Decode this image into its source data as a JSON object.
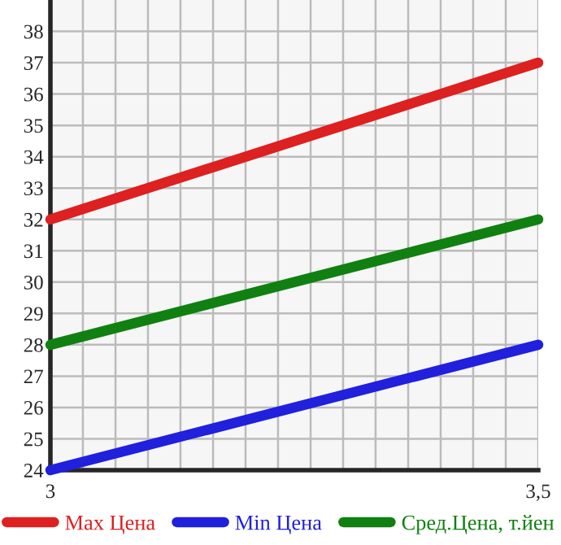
{
  "chart_data": {
    "type": "line",
    "x": [
      3,
      3.5
    ],
    "series": [
      {
        "name": "Max Цена",
        "color": "#dd2020",
        "values": [
          32,
          37
        ]
      },
      {
        "name": "Min Цена",
        "color": "#2020dd",
        "values": [
          24,
          28
        ]
      },
      {
        "name": "Сред.Цена, т.йен",
        "color": "#108010",
        "values": [
          28,
          32
        ]
      }
    ],
    "xlim": [
      3,
      3.5
    ],
    "xticks": [
      {
        "value": 3,
        "label": "3"
      },
      {
        "value": 3.0333,
        "label": null
      },
      {
        "value": 3.0667,
        "label": null
      },
      {
        "value": 3.1,
        "label": null
      },
      {
        "value": 3.1333,
        "label": null
      },
      {
        "value": 3.1667,
        "label": null
      },
      {
        "value": 3.2,
        "label": null
      },
      {
        "value": 3.2333,
        "label": null
      },
      {
        "value": 3.2667,
        "label": null
      },
      {
        "value": 3.3,
        "label": null
      },
      {
        "value": 3.3333,
        "label": null
      },
      {
        "value": 3.3667,
        "label": null
      },
      {
        "value": 3.4,
        "label": null
      },
      {
        "value": 3.4333,
        "label": null
      },
      {
        "value": 3.4667,
        "label": null
      },
      {
        "value": 3.5,
        "label": "3,5"
      }
    ],
    "ylim": [
      24,
      39
    ],
    "yticks": [
      24,
      25,
      26,
      27,
      28,
      29,
      30,
      31,
      32,
      33,
      34,
      35,
      36,
      37,
      38
    ],
    "grid": true,
    "legend": "bottom",
    "marker": "none",
    "line_style": "solid"
  }
}
